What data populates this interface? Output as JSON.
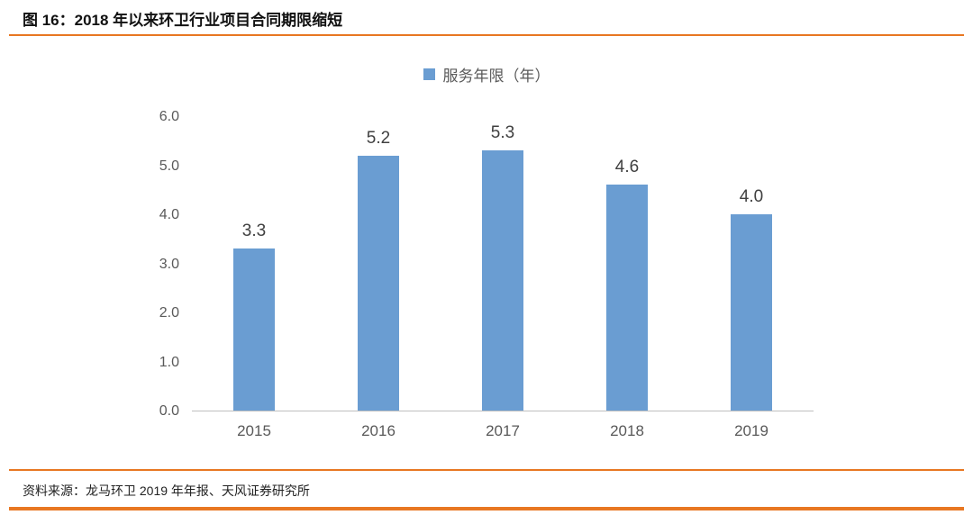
{
  "header": {
    "title": "图 16：2018 年以来环卫行业项目合同期限缩短"
  },
  "footer": {
    "source": "资料来源：龙马环卫 2019 年年报、天风证券研究所"
  },
  "colors": {
    "accent_orange": "#E87722",
    "bar_blue": "#6A9DD2",
    "axis_line": "#BFBFBF",
    "tick_text": "#595959",
    "value_text": "#404040"
  },
  "chart_data": {
    "type": "bar",
    "title": "图 16：2018 年以来环卫行业项目合同期限缩短",
    "legend": [
      "服务年限（年）"
    ],
    "legend_position": "top-center",
    "categories": [
      "2015",
      "2016",
      "2017",
      "2018",
      "2019"
    ],
    "series": [
      {
        "name": "服务年限（年）",
        "values": [
          3.3,
          5.2,
          5.3,
          4.6,
          4.0
        ]
      }
    ],
    "data_labels": [
      "3.3",
      "5.2",
      "5.3",
      "4.6",
      "4.0"
    ],
    "xlabel": "",
    "ylabel": "",
    "ylim": [
      0,
      6
    ],
    "yticks": [
      6.0,
      5.0,
      4.0,
      3.0,
      2.0,
      1.0,
      0.0
    ],
    "ytick_labels": [
      "6.0",
      "5.0",
      "4.0",
      "3.0",
      "2.0",
      "1.0",
      "0.0"
    ],
    "grid": false,
    "bar_color": "#6A9DD2"
  }
}
